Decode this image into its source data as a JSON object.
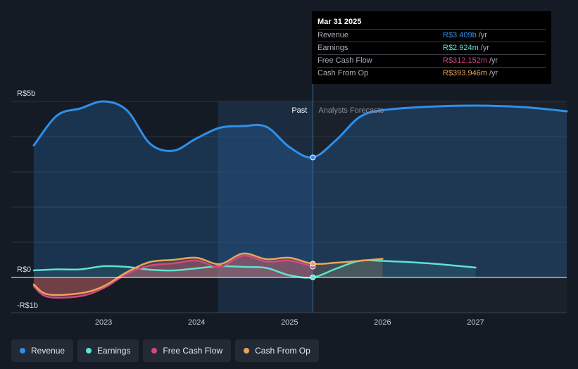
{
  "tooltip": {
    "date": "Mar 31 2025",
    "rows": [
      {
        "name": "Revenue",
        "value": "R$3.409b",
        "unit": "/yr",
        "color": "#2f8fea"
      },
      {
        "name": "Earnings",
        "value": "R$2.924m",
        "unit": "/yr",
        "color": "#5ee3cf"
      },
      {
        "name": "Free Cash Flow",
        "value": "R$312.152m",
        "unit": "/yr",
        "color": "#d4487f"
      },
      {
        "name": "Cash From Op",
        "value": "R$393.946m",
        "unit": "/yr",
        "color": "#e8a55a"
      }
    ]
  },
  "legend": [
    {
      "label": "Revenue",
      "color": "#2f8fea"
    },
    {
      "label": "Earnings",
      "color": "#5ee3cf"
    },
    {
      "label": "Free Cash Flow",
      "color": "#d4487f"
    },
    {
      "label": "Cash From Op",
      "color": "#e8a55a"
    }
  ],
  "chart_data": {
    "type": "area",
    "ylim": [
      -1,
      5
    ],
    "y_tick_labels": [
      {
        "value": 5,
        "label": "R$5b"
      },
      {
        "value": 0,
        "label": "R$0"
      },
      {
        "value": -1,
        "label": "-R$1b"
      }
    ],
    "x_range": [
      2022.25,
      2027.98
    ],
    "x_ticks": [
      "2023",
      "2024",
      "2025",
      "2026",
      "2027"
    ],
    "divider_x": 2025.25,
    "highlight_start_x": 2024.23,
    "past_label": "Past",
    "forecast_label": "Analysts Forecasts",
    "series": [
      {
        "name": "Revenue",
        "color": "#2f8fea",
        "points": [
          [
            2022.25,
            3.75
          ],
          [
            2022.5,
            4.6
          ],
          [
            2022.75,
            4.8
          ],
          [
            2023.0,
            5.0
          ],
          [
            2023.25,
            4.75
          ],
          [
            2023.5,
            3.8
          ],
          [
            2023.75,
            3.6
          ],
          [
            2024.0,
            3.95
          ],
          [
            2024.25,
            4.25
          ],
          [
            2024.5,
            4.3
          ],
          [
            2024.75,
            4.28
          ],
          [
            2025.0,
            3.7
          ],
          [
            2025.25,
            3.41
          ],
          [
            2025.5,
            3.9
          ],
          [
            2025.75,
            4.55
          ],
          [
            2026.0,
            4.75
          ],
          [
            2026.5,
            4.85
          ],
          [
            2027.0,
            4.88
          ],
          [
            2027.5,
            4.84
          ],
          [
            2027.98,
            4.72
          ]
        ]
      },
      {
        "name": "Earnings",
        "color": "#5ee3cf",
        "points": [
          [
            2022.25,
            0.2
          ],
          [
            2022.5,
            0.23
          ],
          [
            2022.75,
            0.23
          ],
          [
            2023.0,
            0.32
          ],
          [
            2023.25,
            0.3
          ],
          [
            2023.5,
            0.22
          ],
          [
            2023.75,
            0.2
          ],
          [
            2024.0,
            0.26
          ],
          [
            2024.25,
            0.32
          ],
          [
            2024.5,
            0.3
          ],
          [
            2024.75,
            0.27
          ],
          [
            2025.0,
            0.06
          ],
          [
            2025.25,
            0.003
          ],
          [
            2025.5,
            0.25
          ],
          [
            2025.75,
            0.47
          ],
          [
            2026.0,
            0.47
          ],
          [
            2026.5,
            0.4
          ],
          [
            2027.0,
            0.28
          ]
        ]
      },
      {
        "name": "Free Cash Flow",
        "color": "#d4487f",
        "points": [
          [
            2022.25,
            -0.25
          ],
          [
            2022.4,
            -0.55
          ],
          [
            2022.75,
            -0.53
          ],
          [
            2023.0,
            -0.3
          ],
          [
            2023.25,
            0.1
          ],
          [
            2023.5,
            0.34
          ],
          [
            2023.75,
            0.4
          ],
          [
            2024.0,
            0.48
          ],
          [
            2024.25,
            0.3
          ],
          [
            2024.5,
            0.62
          ],
          [
            2024.75,
            0.45
          ],
          [
            2025.0,
            0.48
          ],
          [
            2025.25,
            0.31
          ]
        ]
      },
      {
        "name": "Cash From Op",
        "color": "#e8a55a",
        "points": [
          [
            2022.25,
            -0.2
          ],
          [
            2022.4,
            -0.48
          ],
          [
            2022.75,
            -0.45
          ],
          [
            2023.0,
            -0.25
          ],
          [
            2023.25,
            0.15
          ],
          [
            2023.5,
            0.44
          ],
          [
            2023.75,
            0.5
          ],
          [
            2024.0,
            0.56
          ],
          [
            2024.25,
            0.38
          ],
          [
            2024.5,
            0.68
          ],
          [
            2024.75,
            0.52
          ],
          [
            2025.0,
            0.56
          ],
          [
            2025.25,
            0.39
          ],
          [
            2025.5,
            0.42
          ],
          [
            2025.75,
            0.47
          ],
          [
            2026.0,
            0.53
          ]
        ]
      }
    ]
  }
}
